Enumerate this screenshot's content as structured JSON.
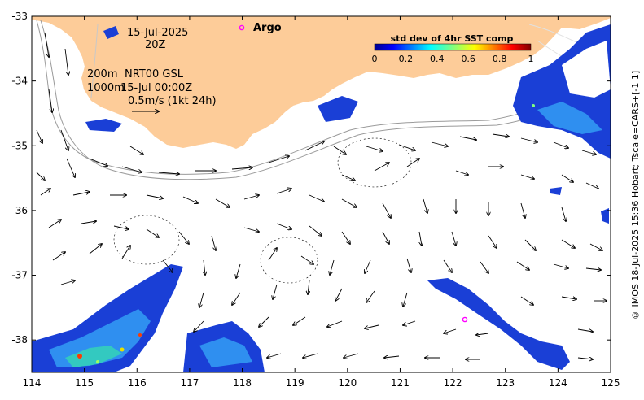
{
  "map": {
    "date": "15-Jul-2025",
    "time": "20Z",
    "depth_line_1": "200m",
    "depth_line_2": "1000m",
    "current_source": "NRT00 GSL",
    "current_time": "15-Jul 00:00Z",
    "scale_text": "0.5m/s (1kt 24h)",
    "argo_label": "Argo",
    "credit": "© IMOS 18-Jul-2025 15:36 Hobart; Tscale=CARS+[-1 1]",
    "colorbar": {
      "title": "std dev of 4hr SST comp",
      "ticks": [
        "0",
        "0.2",
        "0.4",
        "0.6",
        "0.8",
        "1"
      ],
      "range": [
        0,
        1
      ]
    },
    "lon_ticks": [
      "114",
      "115",
      "116",
      "117",
      "118",
      "119",
      "120",
      "121",
      "122",
      "123",
      "124",
      "125"
    ],
    "lat_ticks": [
      "-33",
      "-34",
      "-35",
      "-36",
      "-37",
      "-38"
    ],
    "lon_range": [
      114,
      125
    ],
    "lat_range": [
      -38.5,
      -33
    ],
    "colors": {
      "land": "#fdcc99",
      "ocean": "#ffffff",
      "argo": "#ff00ff",
      "isobath": "#999999"
    }
  }
}
